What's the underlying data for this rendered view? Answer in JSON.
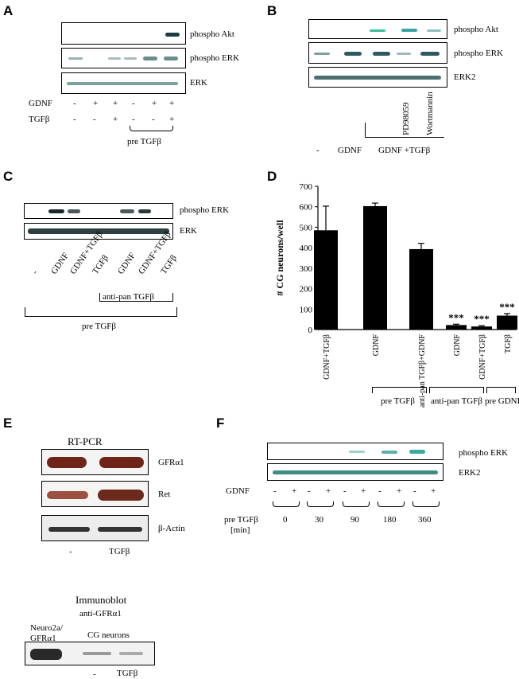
{
  "panels": {
    "A": {
      "label": "A",
      "blots": [
        "phospho Akt",
        "phospho ERK",
        "ERK"
      ],
      "rows": [
        {
          "name": "GDNF",
          "signs": [
            "-",
            "+",
            "+",
            "-",
            "+",
            "+"
          ]
        },
        {
          "name": "TGFβ",
          "signs": [
            "-",
            "-",
            "+",
            "-",
            "-",
            "+"
          ]
        }
      ],
      "bracket_label": "pre TGFβ"
    },
    "B": {
      "label": "B",
      "blots": [
        "phospho Akt",
        "phospho ERK",
        "ERK2"
      ],
      "lane_labels": [
        "PD98059",
        "Wortmannin"
      ],
      "bottom": {
        "dash": "-",
        "gdnf": "GDNF",
        "combo": "GDNF +TGFβ"
      }
    },
    "C": {
      "label": "C",
      "blots": [
        "phospho ERK",
        "ERK"
      ],
      "lane_labels": [
        "-",
        "GDNF",
        "GDNF+TGFβ",
        "TGFβ",
        "GDNF",
        "GDNF+TGFβ",
        "TGFβ"
      ],
      "inner_bracket": "anti-pan TGFβ",
      "outer_bracket": "pre TGFβ"
    },
    "D": {
      "label": "D",
      "groups": [
        "pre TGFβ",
        "anti-pan TGFβ",
        "pre GDNF"
      ],
      "significance": "***"
    },
    "E": {
      "label": "E",
      "rtpcr_title": "RT-PCR",
      "blots": [
        "GFRα1",
        "Ret",
        "β-Actin"
      ],
      "lanes": [
        "-",
        "TGFβ"
      ],
      "immunoblot_title": "Immunoblot",
      "immunoblot_sub": "anti-GFRα1",
      "neuro_label_1": "Neuro2a/",
      "neuro_label_2": "GFRα1",
      "cg_label": "CG neurons",
      "ib_lanes": [
        "-",
        "TGFβ"
      ]
    },
    "F": {
      "label": "F",
      "blots": [
        "phospho ERK",
        "ERK2"
      ],
      "gdnf_label": "GDNF",
      "gdnf_signs": [
        "-",
        "+",
        "-",
        "+",
        "-",
        "+",
        "-",
        "+",
        "-",
        "+"
      ],
      "pre_label_1": "pre TGFβ",
      "pre_label_2": "[min]",
      "times": [
        "0",
        "30",
        "90",
        "180",
        "360"
      ]
    }
  },
  "chart_data": {
    "type": "bar",
    "categories": [
      "GDNF+TGFβ",
      "GDNF",
      "anti-pan TGFβ+GDNF",
      "GDNF",
      "GDNF+TGFβ",
      "TGFβ"
    ],
    "values": [
      485,
      603,
      393,
      22,
      15,
      68
    ],
    "errors": [
      118,
      15,
      28,
      4,
      4,
      10
    ],
    "significant": [
      false,
      false,
      false,
      true,
      true,
      true
    ],
    "ylabel": "# CG neurons/well",
    "yticks": [
      0,
      100,
      200,
      300,
      400,
      500,
      600,
      700
    ],
    "ylim": [
      0,
      700
    ],
    "color": "#000000"
  }
}
